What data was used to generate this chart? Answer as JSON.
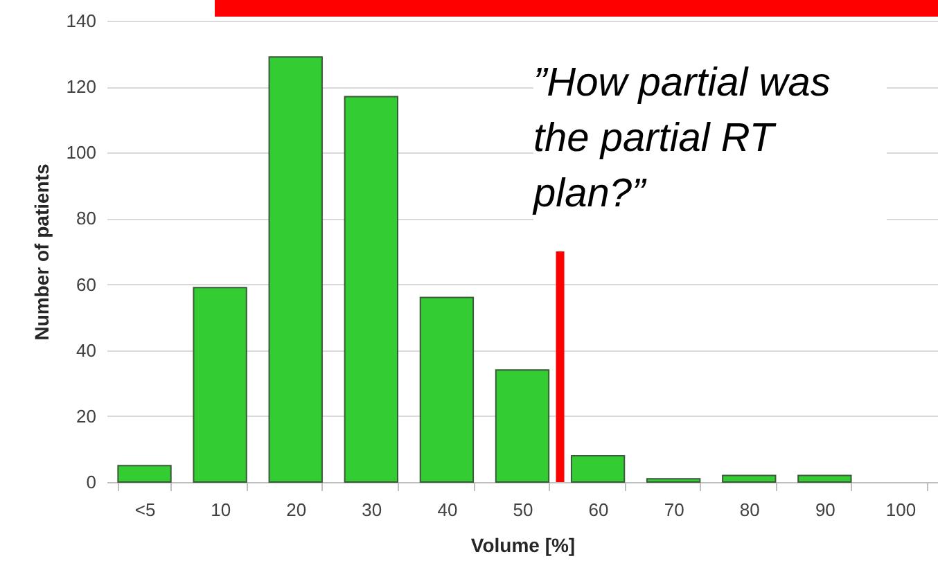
{
  "chart_data": {
    "type": "bar",
    "xlabel": "Volume [%]",
    "ylabel": "Number of patients",
    "categories": [
      "<5",
      "10",
      "20",
      "30",
      "40",
      "50",
      "60",
      "70",
      "80",
      "90",
      "100"
    ],
    "values": [
      5,
      59,
      129,
      117,
      56,
      34,
      8,
      1,
      2,
      2,
      0
    ],
    "color": "#33cc33",
    "ylim": [
      0,
      140
    ],
    "yticks": [
      0,
      20,
      40,
      60,
      80,
      100,
      120,
      140
    ],
    "grid": "y",
    "annotations": [
      "”How partial was the partial RT plan?”"
    ],
    "ref_lines": [
      {
        "axis": "x",
        "value": "50",
        "color": "#ff0000"
      }
    ]
  }
}
